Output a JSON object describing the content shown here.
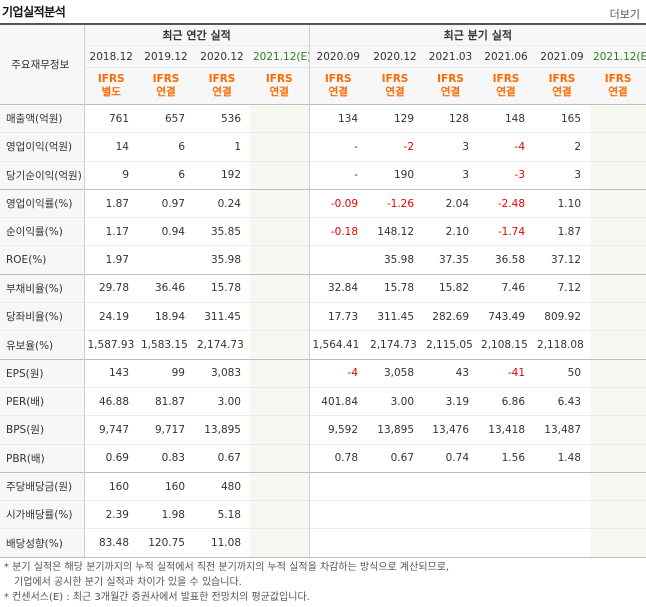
{
  "header": {
    "title": "기업실적분석",
    "more": "더보기"
  },
  "table": {
    "corner": "주요재무정보",
    "group_annual": "최근 연간 실적",
    "group_quarter": "최근 분기 실적",
    "periods": [
      "2018.12",
      "2019.12",
      "2020.12",
      "2021.12(E)",
      "2020.09",
      "2020.12",
      "2021.03",
      "2021.06",
      "2021.09",
      "2021.12(E)"
    ],
    "ifrs": [
      [
        "IFRS",
        "별도"
      ],
      [
        "IFRS",
        "연결"
      ],
      [
        "IFRS",
        "연결"
      ],
      [
        "IFRS",
        "연결"
      ],
      [
        "IFRS",
        "연결"
      ],
      [
        "IFRS",
        "연결"
      ],
      [
        "IFRS",
        "연결"
      ],
      [
        "IFRS",
        "연결"
      ],
      [
        "IFRS",
        "연결"
      ],
      [
        "IFRS",
        "연결"
      ]
    ],
    "rows": [
      {
        "label": "매출액(억원)",
        "values": [
          "761",
          "657",
          "536",
          "",
          "134",
          "129",
          "128",
          "148",
          "165",
          ""
        ]
      },
      {
        "label": "영업이익(억원)",
        "values": [
          "14",
          "6",
          "1",
          "",
          "-",
          "-2",
          "3",
          "-4",
          "2",
          ""
        ]
      },
      {
        "label": "당기순이익(억원)",
        "values": [
          "9",
          "6",
          "192",
          "",
          "-",
          "190",
          "3",
          "-3",
          "3",
          ""
        ]
      },
      {
        "label": "영업이익률(%)",
        "values": [
          "1.87",
          "0.97",
          "0.24",
          "",
          "-0.09",
          "-1.26",
          "2.04",
          "-2.48",
          "1.10",
          ""
        ]
      },
      {
        "label": "순이익률(%)",
        "values": [
          "1.17",
          "0.94",
          "35.85",
          "",
          "-0.18",
          "148.12",
          "2.10",
          "-1.74",
          "1.87",
          ""
        ]
      },
      {
        "label": "ROE(%)",
        "values": [
          "1.97",
          "",
          "35.98",
          "",
          "",
          "35.98",
          "37.35",
          "36.58",
          "37.12",
          ""
        ]
      },
      {
        "label": "부채비율(%)",
        "values": [
          "29.78",
          "36.46",
          "15.78",
          "",
          "32.84",
          "15.78",
          "15.82",
          "7.46",
          "7.12",
          ""
        ]
      },
      {
        "label": "당좌비율(%)",
        "values": [
          "24.19",
          "18.94",
          "311.45",
          "",
          "17.73",
          "311.45",
          "282.69",
          "743.49",
          "809.92",
          ""
        ]
      },
      {
        "label": "유보율(%)",
        "values": [
          "1,587.93",
          "1,583.15",
          "2,174.73",
          "",
          "1,564.41",
          "2,174.73",
          "2,115.05",
          "2,108.15",
          "2,118.08",
          ""
        ]
      },
      {
        "label": "EPS(원)",
        "values": [
          "143",
          "99",
          "3,083",
          "",
          "-4",
          "3,058",
          "43",
          "-41",
          "50",
          ""
        ]
      },
      {
        "label": "PER(배)",
        "values": [
          "46.88",
          "81.87",
          "3.00",
          "",
          "401.84",
          "3.00",
          "3.19",
          "6.86",
          "6.43",
          ""
        ]
      },
      {
        "label": "BPS(원)",
        "values": [
          "9,747",
          "9,717",
          "13,895",
          "",
          "9,592",
          "13,895",
          "13,476",
          "13,418",
          "13,487",
          ""
        ]
      },
      {
        "label": "PBR(배)",
        "values": [
          "0.69",
          "0.83",
          "0.67",
          "",
          "0.78",
          "0.67",
          "0.74",
          "1.56",
          "1.48",
          ""
        ]
      },
      {
        "label": "주당배당금(원)",
        "values": [
          "160",
          "160",
          "480",
          "",
          "",
          "",
          "",
          "",
          "",
          ""
        ]
      },
      {
        "label": "시가배당률(%)",
        "values": [
          "2.39",
          "1.98",
          "5.18",
          "",
          "",
          "",
          "",
          "",
          "",
          ""
        ]
      },
      {
        "label": "배당성향(%)",
        "values": [
          "83.48",
          "120.75",
          "11.08",
          "",
          "",
          "",
          "",
          "",
          "",
          ""
        ]
      }
    ]
  },
  "notes": [
    "* 분기 실적은 해당 분기까지의 누적 실적에서 직전 분기까지의 누적 실적을 차감하는 방식으로 계산되므로,",
    "기업에서 공시한 분기 실적과 차이가 있을 수 있습니다.",
    "* 컨센서스(E) : 최근 3개월간 증권사에서 발표한 전망치의 평균값입니다."
  ],
  "colors": {
    "ifrs": "#ff6a00",
    "negative": "#e60000",
    "estimate_bg": "#f5f8f1",
    "header_bg": "#f7f7f7"
  }
}
